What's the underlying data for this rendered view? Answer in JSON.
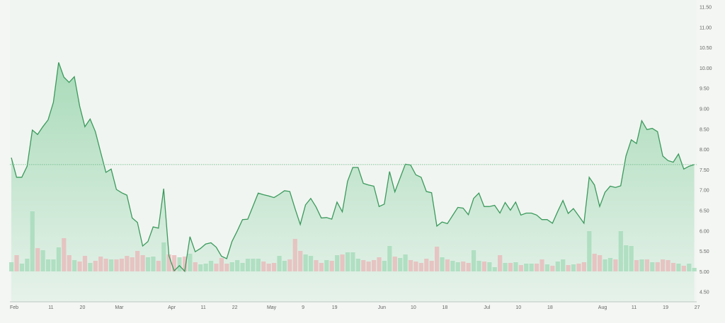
{
  "chart_data": {
    "type": "area",
    "title": "",
    "xlabel": "",
    "ylabel": "",
    "ylim": [
      4.5,
      11.5
    ],
    "y_ticks": [
      "11.50",
      "11.00",
      "10.50",
      "10.00",
      "9.50",
      "9.00",
      "8.50",
      "8.00",
      "7.50",
      "7.00",
      "6.50",
      "6.00",
      "5.50",
      "5.00",
      "4.50"
    ],
    "y_axis_side": "right",
    "grid": false,
    "reference_line": 7.63,
    "x_ticks": [
      {
        "label": "Feb",
        "index": 0
      },
      {
        "label": "11",
        "index": 7
      },
      {
        "label": "20",
        "index": 13
      },
      {
        "label": "Mar",
        "index": 20
      },
      {
        "label": "Apr",
        "index": 30
      },
      {
        "label": "11",
        "index": 36
      },
      {
        "label": "22",
        "index": 42
      },
      {
        "label": "May",
        "index": 49
      },
      {
        "label": "9",
        "index": 55
      },
      {
        "label": "19",
        "index": 61
      },
      {
        "label": "Jun",
        "index": 70
      },
      {
        "label": "10",
        "index": 76
      },
      {
        "label": "18",
        "index": 82
      },
      {
        "label": "Jul",
        "index": 90
      },
      {
        "label": "10",
        "index": 96
      },
      {
        "label": "18",
        "index": 102
      },
      {
        "label": "Aug",
        "index": 112
      },
      {
        "label": "11",
        "index": 118
      },
      {
        "label": "19",
        "index": 124
      },
      {
        "label": "27",
        "index": 130
      }
    ],
    "price": [
      7.8,
      7.32,
      7.32,
      7.59,
      8.48,
      8.37,
      8.56,
      8.73,
      9.16,
      10.14,
      9.78,
      9.65,
      9.79,
      9.07,
      8.56,
      8.75,
      8.44,
      7.94,
      7.44,
      7.52,
      7.02,
      6.94,
      6.88,
      6.32,
      6.21,
      5.63,
      5.74,
      6.1,
      6.07,
      7.04,
      5.39,
      5.02,
      5.15,
      5.01,
      5.86,
      5.49,
      5.57,
      5.68,
      5.71,
      5.6,
      5.38,
      5.32,
      5.74,
      6.0,
      6.28,
      6.29,
      6.61,
      6.93,
      6.89,
      6.86,
      6.82,
      6.9,
      6.99,
      6.97,
      6.55,
      6.16,
      6.64,
      6.8,
      6.59,
      6.32,
      6.33,
      6.29,
      6.71,
      6.47,
      7.22,
      7.56,
      7.56,
      7.17,
      7.13,
      7.1,
      6.6,
      6.66,
      7.46,
      6.96,
      7.3,
      7.64,
      7.62,
      7.38,
      7.32,
      6.97,
      6.94,
      6.12,
      6.22,
      6.18,
      6.38,
      6.58,
      6.56,
      6.4,
      6.8,
      6.93,
      6.6,
      6.6,
      6.63,
      6.44,
      6.7,
      6.51,
      6.71,
      6.39,
      6.44,
      6.44,
      6.39,
      6.28,
      6.28,
      6.19,
      6.48,
      6.75,
      6.43,
      6.55,
      6.37,
      6.19,
      7.32,
      7.13,
      6.6,
      6.95,
      7.1,
      7.07,
      7.11,
      7.84,
      8.24,
      8.15,
      8.71,
      8.49,
      8.52,
      8.44,
      7.84,
      7.73,
      7.69,
      7.89,
      7.52,
      7.59,
      7.63
    ],
    "volume": [
      13,
      23,
      11,
      18,
      85,
      33,
      30,
      17,
      17,
      34,
      47,
      23,
      16,
      14,
      22,
      12,
      15,
      21,
      18,
      17,
      17,
      18,
      22,
      20,
      29,
      23,
      20,
      21,
      15,
      41,
      24,
      23,
      20,
      21,
      25,
      13,
      10,
      11,
      15,
      11,
      19,
      11,
      13,
      16,
      12,
      18,
      18,
      18,
      14,
      11,
      12,
      22,
      15,
      17,
      46,
      29,
      24,
      22,
      16,
      12,
      16,
      15,
      23,
      24,
      27,
      27,
      18,
      16,
      14,
      16,
      20,
      15,
      36,
      21,
      19,
      24,
      16,
      14,
      12,
      18,
      15,
      35,
      20,
      17,
      15,
      13,
      14,
      12,
      30,
      15,
      14,
      13,
      6,
      23,
      12,
      12,
      13,
      9,
      11,
      11,
      11,
      17,
      10,
      8,
      14,
      17,
      9,
      10,
      11,
      13,
      57,
      25,
      23,
      17,
      19,
      17,
      57,
      37,
      36,
      16,
      17,
      17,
      13,
      13,
      17,
      16,
      12,
      11,
      8,
      11,
      5
    ],
    "colors": {
      "line": "#3a9a5c",
      "area_top": "#a9dbb9",
      "area_bottom": "#e6f2ea",
      "volume_up": "#a8dcbc",
      "volume_down": "#e8bcbc",
      "reference": "#5fb37c"
    }
  }
}
